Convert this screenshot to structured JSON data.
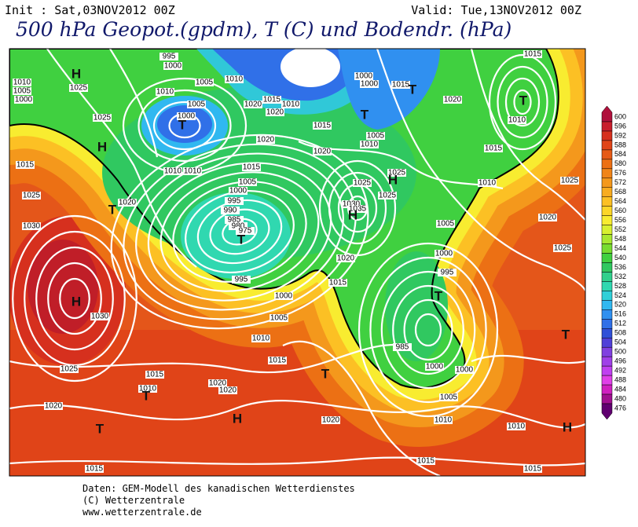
{
  "header": {
    "init": "Init : Sat,03NOV2012 00Z",
    "valid": "Valid: Tue,13NOV2012 00Z",
    "title": "500 hPa Geopot.(gpdm), T (C) und Bodendr. (hPa)"
  },
  "map": {
    "isobar_labels": [
      995,
      1000,
      1010,
      1005,
      1000,
      1025,
      1005,
      1010,
      1010,
      1005,
      1000,
      1025,
      1020,
      1015,
      1010,
      1020,
      1015,
      1000,
      1000,
      1015,
      1020,
      1010,
      1005,
      1020,
      1020,
      1015,
      1010,
      1010,
      1005,
      1000,
      995,
      990,
      985,
      980,
      975,
      1025,
      1020,
      1015,
      1030,
      1025,
      1025,
      1025,
      1030,
      1035,
      1010,
      1020,
      1005,
      1000,
      995,
      1000,
      995,
      1005,
      1010,
      1015,
      1030,
      1025,
      1015,
      1010,
      1020,
      1020,
      1020,
      1020,
      985,
      1000,
      1000,
      1005,
      1010,
      1010,
      1015,
      1015,
      1015,
      1015,
      1010,
      1015,
      1025,
      1020,
      1025,
      1015
    ],
    "pressure_centers": [
      "H",
      "H",
      "T",
      "T",
      "T",
      "H",
      "T",
      "T",
      "T",
      "H",
      "H",
      "T",
      "T",
      "T",
      "T",
      "H",
      "T",
      "H"
    ]
  },
  "legend": {
    "ticks": [
      600,
      596,
      592,
      588,
      584,
      580,
      576,
      572,
      568,
      564,
      560,
      556,
      552,
      548,
      544,
      540,
      536,
      532,
      528,
      524,
      520,
      516,
      512,
      508,
      504,
      500,
      496,
      492,
      488,
      484,
      480,
      476
    ]
  },
  "footer": {
    "lines": [
      "Daten: GEM-Modell des kanadischen Wetterdienstes",
      "(C) Wetterzentrale",
      "www.wetterzentrale.de"
    ]
  }
}
